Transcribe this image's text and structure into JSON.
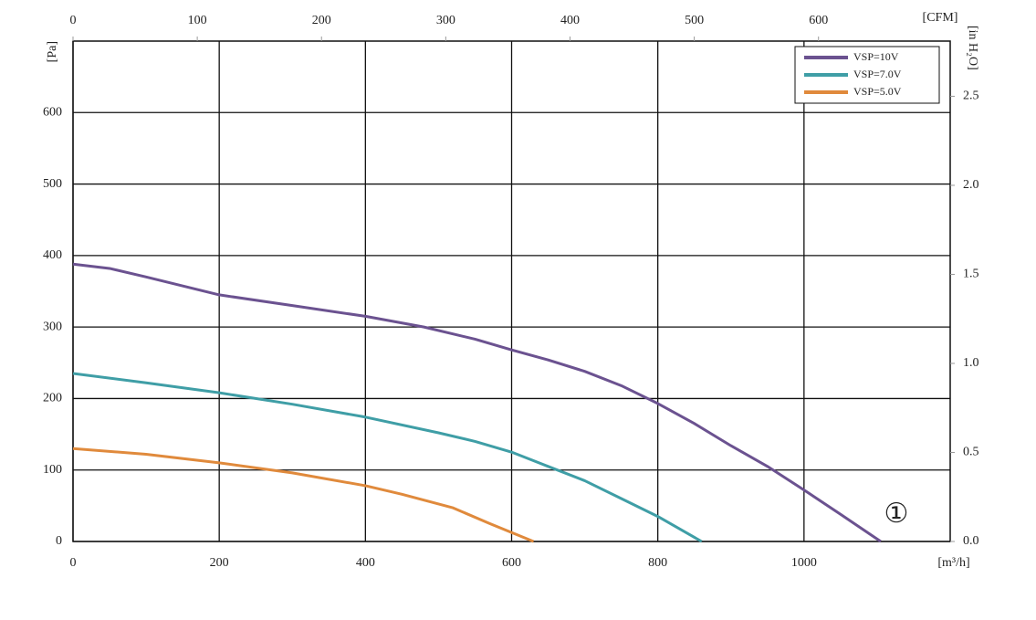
{
  "chart_data": {
    "type": "line",
    "x_label": "[m³/h]",
    "y_label": "[Pa]",
    "x2_label": "[CFM]",
    "y2_label": "[in H₂O]",
    "annotation": "①",
    "xlim": [
      0,
      1200
    ],
    "xticks": [
      0,
      200,
      400,
      600,
      800,
      1000
    ],
    "ylim": [
      0,
      700
    ],
    "yticks": [
      0,
      100,
      200,
      300,
      400,
      500,
      600
    ],
    "x2lim": [
      0,
      706
    ],
    "x2ticks": [
      0,
      100,
      200,
      300,
      400,
      500,
      600
    ],
    "y2lim": [
      0,
      2.81
    ],
    "y2ticks": [
      {
        "value": 0,
        "label": "0.0"
      },
      {
        "value": 0.5,
        "label": "0.5"
      },
      {
        "value": 1,
        "label": "1.0"
      },
      {
        "value": 1.5,
        "label": "1.5"
      },
      {
        "value": 2,
        "label": "2.0"
      },
      {
        "value": 2.5,
        "label": "2.5"
      }
    ],
    "grid": true,
    "legend": "upper right",
    "series": [
      {
        "name": "VSP=10V",
        "color": "#6b5290",
        "x": [
          0,
          50,
          100,
          200,
          300,
          400,
          480,
          550,
          600,
          650,
          700,
          750,
          800,
          850,
          900,
          950,
          1000,
          1050,
          1105
        ],
        "values": [
          388,
          382,
          370,
          345,
          330,
          315,
          300,
          283,
          268,
          254,
          238,
          218,
          193,
          165,
          134,
          105,
          72,
          38,
          0
        ]
      },
      {
        "name": "VSP=7.0V",
        "color": "#3f9ea6",
        "x": [
          0,
          100,
          200,
          300,
          400,
          500,
          550,
          600,
          650,
          700,
          750,
          800,
          860
        ],
        "values": [
          235,
          222,
          208,
          192,
          174,
          152,
          140,
          125,
          105,
          85,
          60,
          35,
          0
        ]
      },
      {
        "name": "VSP=5.0V",
        "color": "#e08a3c",
        "x": [
          0,
          100,
          200,
          300,
          400,
          450,
          520,
          570,
          630
        ],
        "values": [
          130,
          122,
          110,
          96,
          78,
          66,
          47,
          25,
          0
        ]
      }
    ]
  }
}
